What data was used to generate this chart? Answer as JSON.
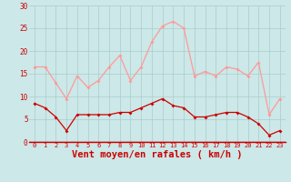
{
  "hours": [
    0,
    1,
    2,
    3,
    4,
    5,
    6,
    7,
    8,
    9,
    10,
    11,
    12,
    13,
    14,
    15,
    16,
    17,
    18,
    19,
    20,
    21,
    22,
    23
  ],
  "wind_avg": [
    8.5,
    7.5,
    5.5,
    2.5,
    6.0,
    6.0,
    6.0,
    6.0,
    6.5,
    6.5,
    7.5,
    8.5,
    9.5,
    8.0,
    7.5,
    5.5,
    5.5,
    6.0,
    6.5,
    6.5,
    5.5,
    4.0,
    1.5,
    2.5
  ],
  "wind_gusts": [
    16.5,
    16.5,
    13.0,
    9.5,
    14.5,
    12.0,
    13.5,
    16.5,
    19.0,
    13.5,
    16.5,
    22.0,
    25.5,
    26.5,
    25.0,
    14.5,
    15.5,
    14.5,
    16.5,
    16.0,
    14.5,
    17.5,
    6.0,
    9.5
  ],
  "avg_color": "#cc0000",
  "gusts_color": "#ff9999",
  "bg_color": "#cce8e8",
  "grid_color": "#aacccc",
  "xlabel": "Vent moyen/en rafales ( km/h )",
  "ylim": [
    0,
    30
  ],
  "yticks": [
    0,
    5,
    10,
    15,
    20,
    25,
    30
  ],
  "tick_color": "#cc0000",
  "xlabel_fontsize": 7.5
}
